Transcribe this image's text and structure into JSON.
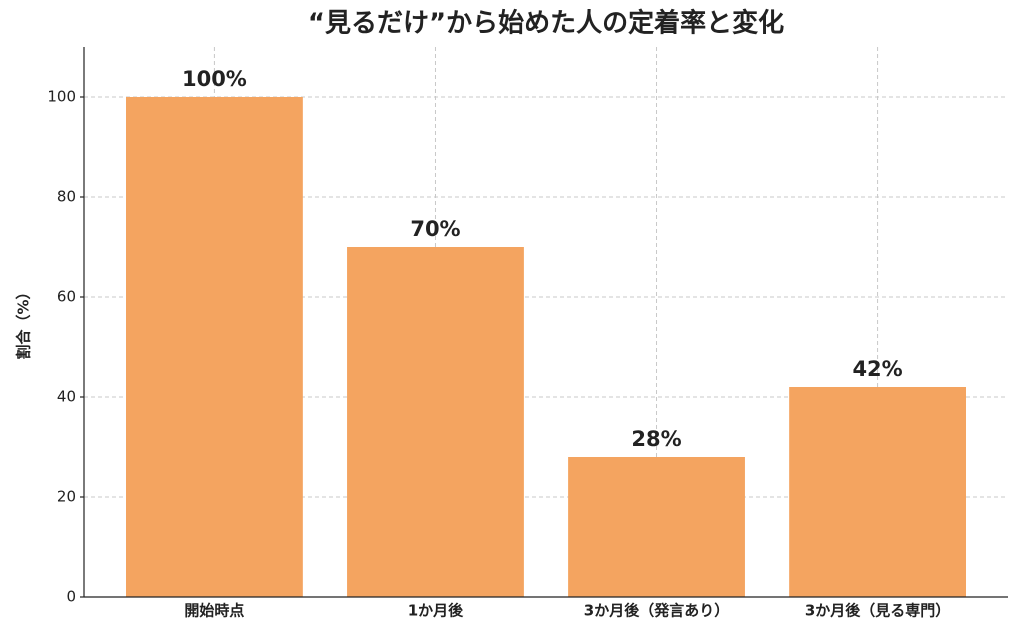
{
  "chart_data": {
    "type": "bar",
    "title": "“見るだけ”から始めた人の定着率と変化",
    "y_label": "割合（%）",
    "categories": [
      "開始時点",
      "1か月後",
      "3か月後（発言あり）",
      "3か月後（見る専門）"
    ],
    "values": [
      100,
      70,
      28,
      42
    ],
    "value_labels": [
      "100%",
      "70%",
      "28%",
      "42%"
    ],
    "color": "#f4a460",
    "ylim": [
      0,
      110
    ],
    "yticks": [
      0,
      20,
      40,
      60,
      80,
      100
    ],
    "grid": true
  }
}
